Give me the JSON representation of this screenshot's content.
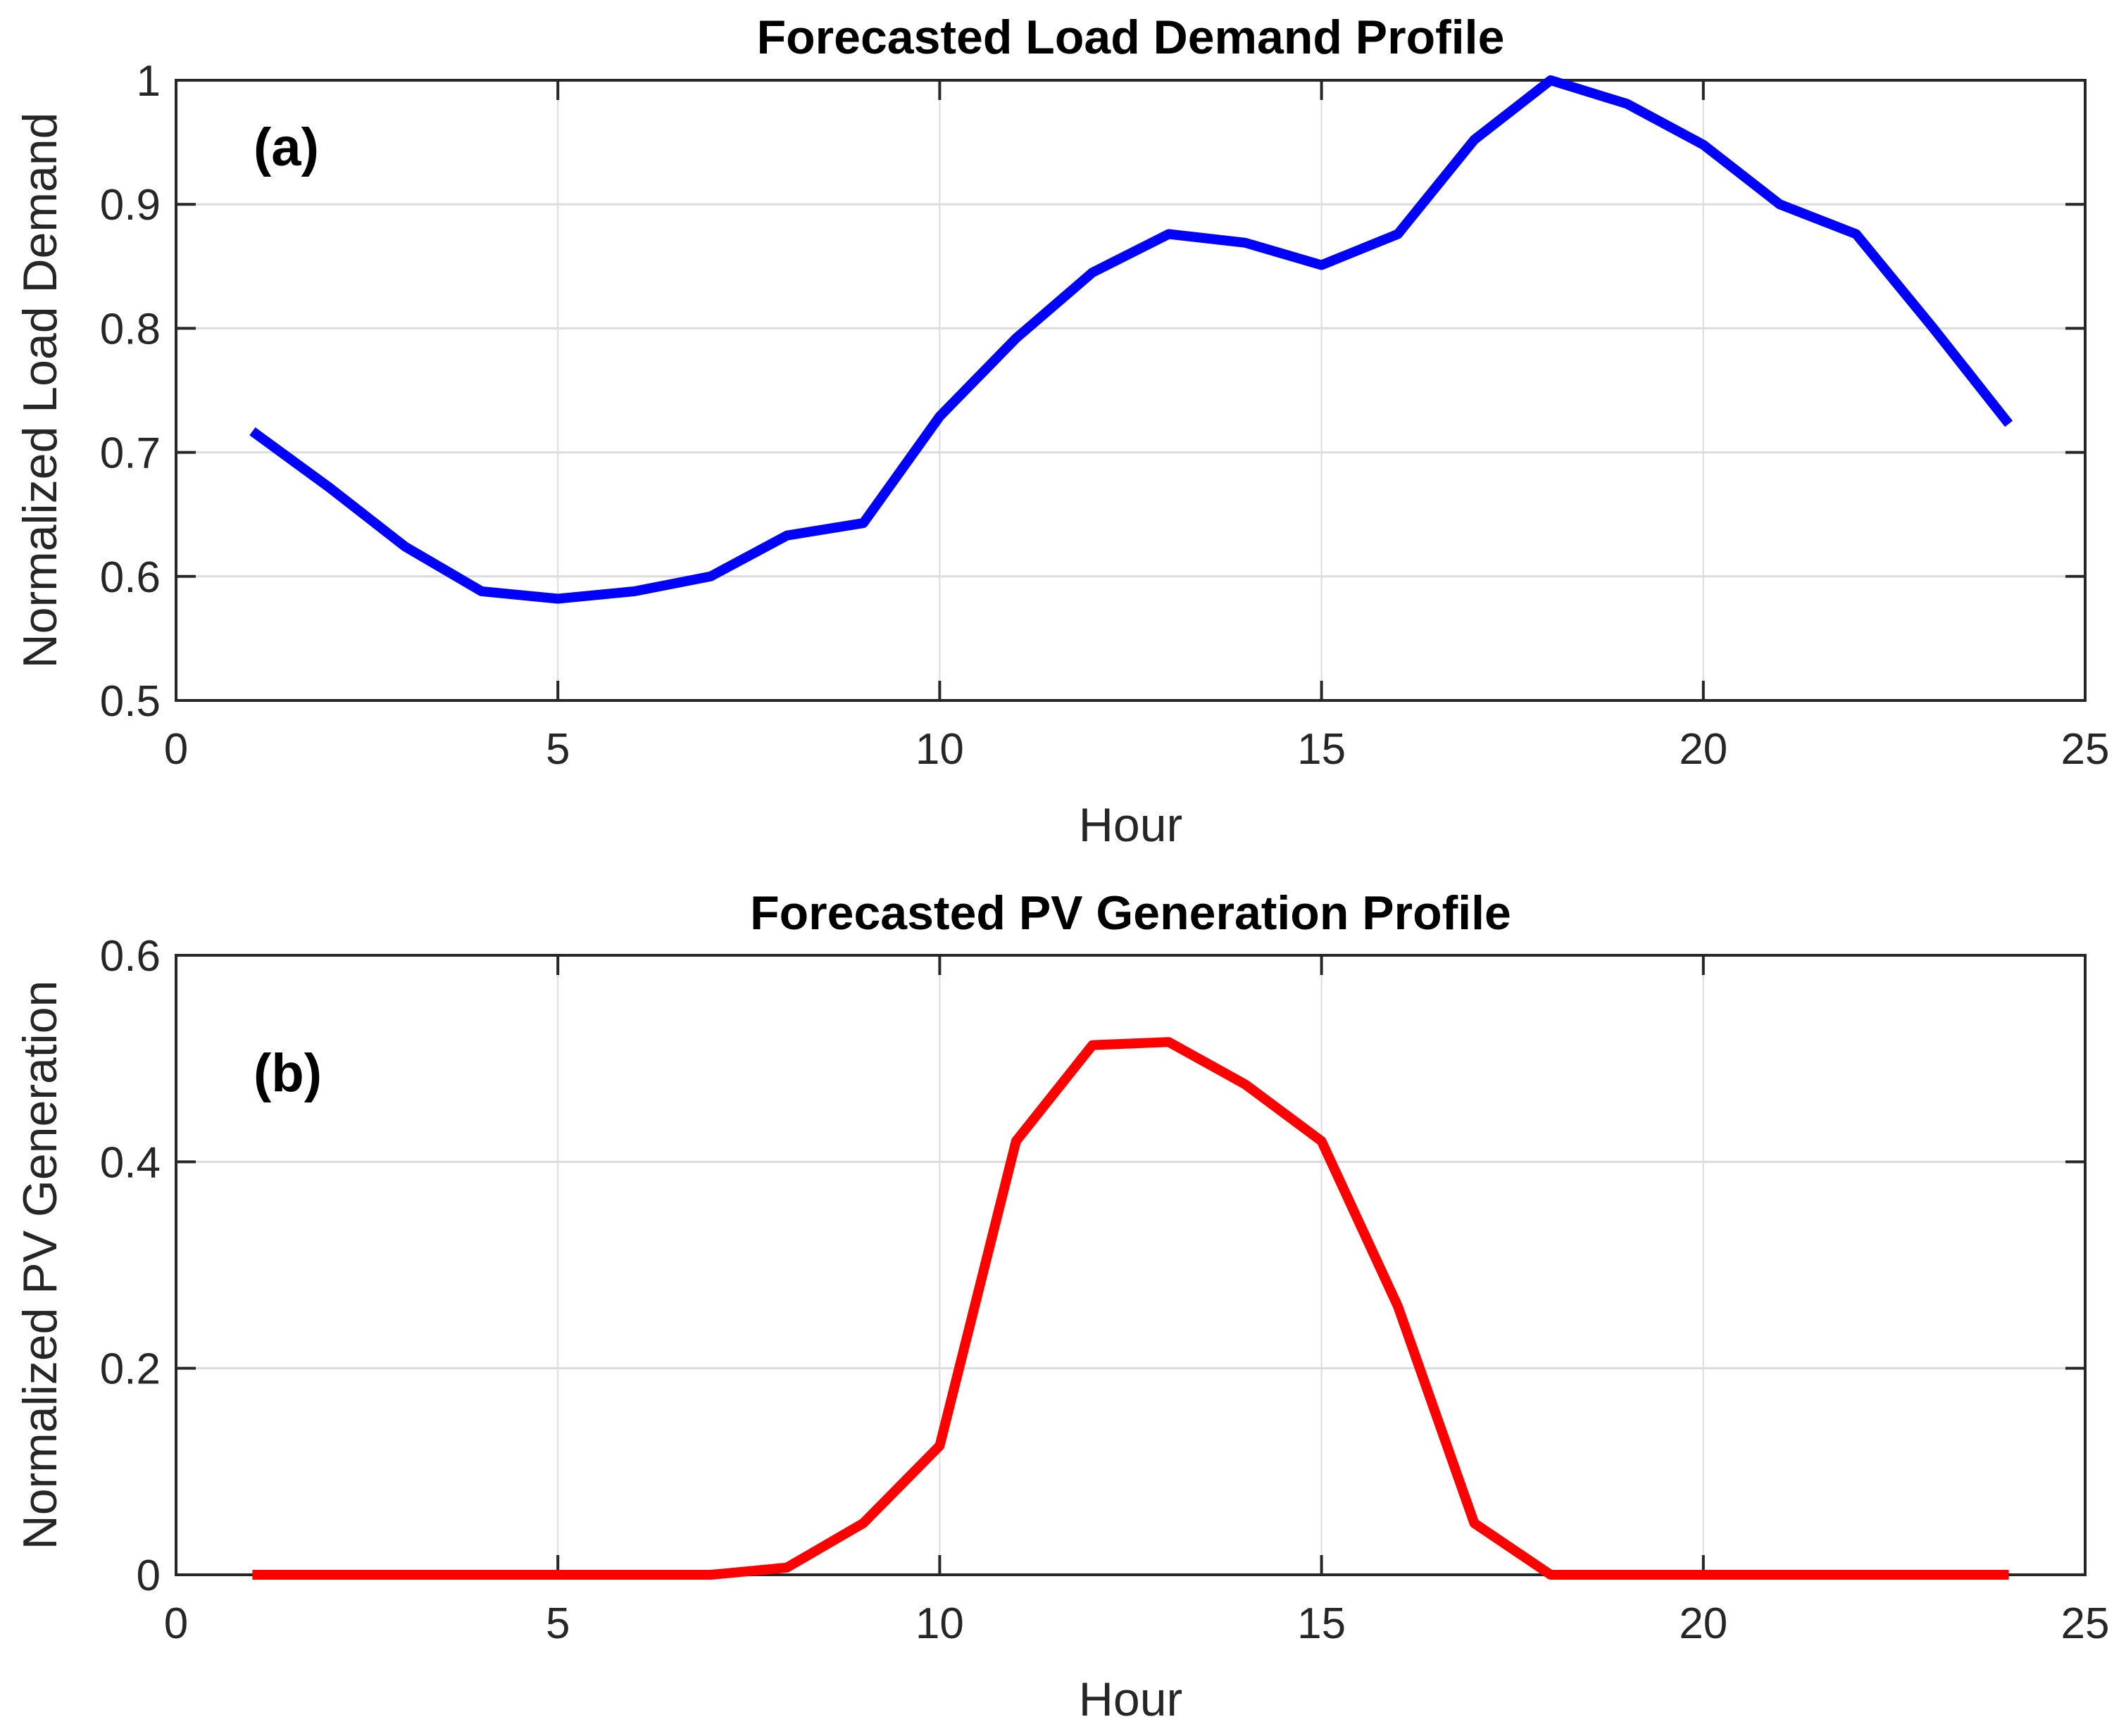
{
  "chart_data": [
    {
      "type": "line",
      "title": "Forecasted Load Demand Profile",
      "panel_label": "(a)",
      "xlabel": "Hour",
      "ylabel": "Normalized Load Demand",
      "xlim": [
        0,
        25
      ],
      "ylim": [
        0.5,
        1
      ],
      "xticks": [
        0,
        5,
        10,
        15,
        20,
        25
      ],
      "yticks": [
        0.5,
        0.6,
        0.7,
        0.8,
        0.9,
        1
      ],
      "ytick_labels": [
        "0.5",
        "0.6",
        "0.7",
        "0.8",
        "0.9",
        "1"
      ],
      "grid": true,
      "color": "#0000ff",
      "x": [
        1,
        2,
        3,
        4,
        5,
        6,
        7,
        8,
        9,
        10,
        11,
        12,
        13,
        14,
        15,
        16,
        17,
        18,
        19,
        20,
        21,
        22,
        23,
        24
      ],
      "y": [
        0.717,
        0.672,
        0.624,
        0.588,
        0.582,
        0.588,
        0.6,
        0.633,
        0.643,
        0.729,
        0.792,
        0.845,
        0.876,
        0.869,
        0.851,
        0.876,
        0.952,
        1.0,
        0.981,
        0.948,
        0.9,
        0.876,
        0.801,
        0.723
      ]
    },
    {
      "type": "line",
      "title": "Forecasted PV Generation Profile",
      "panel_label": "(b)",
      "xlabel": "Hour",
      "ylabel": "Normalized PV Generation",
      "xlim": [
        0,
        25
      ],
      "ylim": [
        0,
        0.6
      ],
      "xticks": [
        0,
        5,
        10,
        15,
        20,
        25
      ],
      "yticks": [
        0,
        0.2,
        0.4,
        0.6
      ],
      "ytick_labels": [
        "0",
        "0.2",
        "0.4",
        "0.6"
      ],
      "grid": true,
      "color": "#ff0000",
      "x": [
        1,
        2,
        3,
        4,
        5,
        6,
        7,
        8,
        9,
        10,
        11,
        12,
        13,
        14,
        15,
        16,
        17,
        18,
        19,
        20,
        21,
        22,
        23,
        24
      ],
      "y": [
        0,
        0,
        0,
        0,
        0,
        0,
        0,
        0.007,
        0.05,
        0.125,
        0.42,
        0.513,
        0.516,
        0.475,
        0.42,
        0.26,
        0.05,
        0,
        0,
        0,
        0,
        0,
        0,
        0
      ]
    }
  ]
}
